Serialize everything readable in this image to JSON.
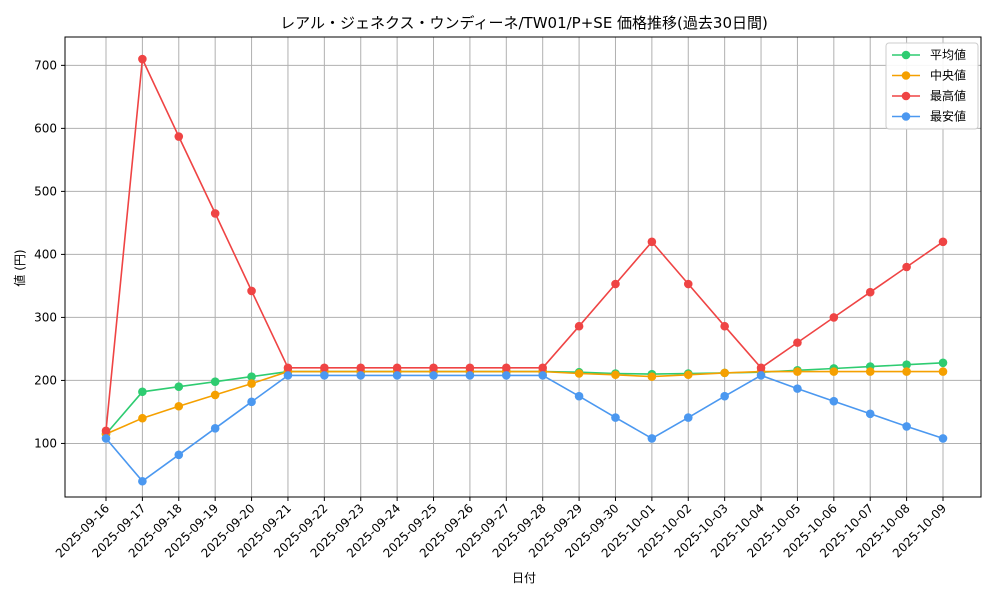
{
  "chart_data": {
    "type": "line",
    "title": "レアル・ジェネクス・ウンディーネ/TW01/P+SE 価格推移(過去30日間)",
    "xlabel": "日付",
    "ylabel": "値 (円)",
    "ylim": [
      15,
      745
    ],
    "yticks": [
      100,
      200,
      300,
      400,
      500,
      600,
      700
    ],
    "grid": true,
    "legend_position": "top-right",
    "categories": [
      "2025-09-16",
      "2025-09-17",
      "2025-09-18",
      "2025-09-19",
      "2025-09-20",
      "2025-09-21",
      "2025-09-22",
      "2025-09-23",
      "2025-09-24",
      "2025-09-25",
      "2025-09-26",
      "2025-09-27",
      "2025-09-28",
      "2025-09-29",
      "2025-09-30",
      "2025-10-01",
      "2025-10-02",
      "2025-10-03",
      "2025-10-04",
      "2025-10-05",
      "2025-10-06",
      "2025-10-07",
      "2025-10-08",
      "2025-10-09"
    ],
    "series": [
      {
        "name": "平均値",
        "color": "#2ecc71",
        "values": [
          115,
          182,
          190,
          198,
          206,
          214,
          214,
          214,
          214,
          214,
          214,
          214,
          214,
          213,
          211,
          210,
          211,
          212,
          213,
          216,
          219,
          222,
          225,
          228
        ]
      },
      {
        "name": "中央値",
        "color": "#f5a000",
        "values": [
          115,
          140,
          159,
          177,
          195,
          214,
          214,
          214,
          214,
          214,
          214,
          214,
          214,
          211,
          209,
          206,
          209,
          212,
          214,
          214,
          214,
          214,
          214,
          214
        ]
      },
      {
        "name": "最高値",
        "color": "#ef4444",
        "values": [
          120,
          710,
          587,
          465,
          342,
          220,
          220,
          220,
          220,
          220,
          220,
          220,
          220,
          286,
          353,
          420,
          353,
          286,
          220,
          260,
          300,
          340,
          380,
          420
        ]
      },
      {
        "name": "最安値",
        "color": "#4b98f0",
        "values": [
          108,
          40,
          82,
          124,
          166,
          208,
          208,
          208,
          208,
          208,
          208,
          208,
          208,
          175,
          141,
          108,
          141,
          175,
          208,
          187,
          167,
          147,
          127,
          108
        ]
      }
    ]
  }
}
